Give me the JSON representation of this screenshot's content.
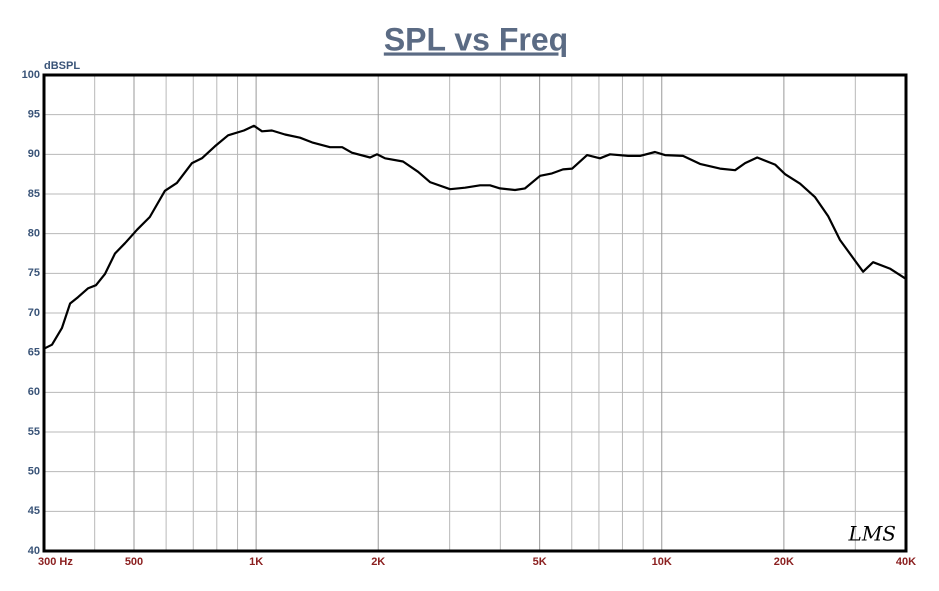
{
  "chart_data": {
    "type": "line",
    "title": "SPL vs Freq",
    "ylabel": "dBSPL",
    "logo": "LMS",
    "xscale": "log",
    "grid": true,
    "xlim": [
      300,
      40000
    ],
    "ylim": [
      40,
      100
    ],
    "xticks": [
      {
        "value": 300,
        "label": "300 Hz"
      },
      500,
      {
        "value": 1000,
        "label": "1K"
      },
      {
        "value": 2000,
        "label": "2K"
      },
      {
        "value": 5000,
        "label": "5K"
      },
      {
        "value": 10000,
        "label": "10K"
      },
      {
        "value": 20000,
        "label": "20K"
      },
      {
        "value": 40000,
        "label": "40K"
      }
    ],
    "xgrid": [
      400,
      600,
      700,
      800,
      900,
      3000,
      4000,
      6000,
      7000,
      8000,
      9000,
      30000
    ],
    "yticks": [
      40,
      45,
      50,
      55,
      60,
      65,
      70,
      75,
      80,
      85,
      90,
      95,
      100
    ],
    "x": [
      300,
      314,
      332,
      348,
      364,
      385,
      403,
      424,
      449,
      475,
      509,
      547,
      596,
      638,
      695,
      735,
      791,
      853,
      933,
      988,
      1034,
      1094,
      1178,
      1283,
      1374,
      1521,
      1630,
      1722,
      1910,
      1987,
      2079,
      2302,
      2508,
      2683,
      3007,
      3274,
      3565,
      3772,
      3993,
      4348,
      4602,
      5013,
      5362,
      5709,
      6013,
      6544,
      7042,
      7454,
      8262,
      8837,
      9624,
      10185,
      11282,
      12422,
      13919,
      15160,
      16047,
      17188,
      19025,
      20138,
      21929,
      23876,
      25721,
      27509,
      29954,
      31353,
      33188,
      36512,
      40000
    ],
    "series": [
      {
        "name": "SPL",
        "color": "#000000",
        "values": [
          65.5,
          66.0,
          68.1,
          71.2,
          72.0,
          73.1,
          73.5,
          74.9,
          77.5,
          78.8,
          80.5,
          82.1,
          85.4,
          86.4,
          88.9,
          89.5,
          91.0,
          92.4,
          93.0,
          93.6,
          92.9,
          93.0,
          92.5,
          92.1,
          91.5,
          90.9,
          90.9,
          90.2,
          89.6,
          90.0,
          89.5,
          89.1,
          87.8,
          86.5,
          85.6,
          85.8,
          86.1,
          86.1,
          85.7,
          85.5,
          85.7,
          87.3,
          87.6,
          88.1,
          88.2,
          89.9,
          89.5,
          90.0,
          89.8,
          89.8,
          90.3,
          89.9,
          89.8,
          88.8,
          88.2,
          88.0,
          88.9,
          89.6,
          88.7,
          87.5,
          86.3,
          84.6,
          82.2,
          79.2,
          76.6,
          75.2,
          76.4,
          75.6,
          74.3
        ]
      }
    ]
  }
}
